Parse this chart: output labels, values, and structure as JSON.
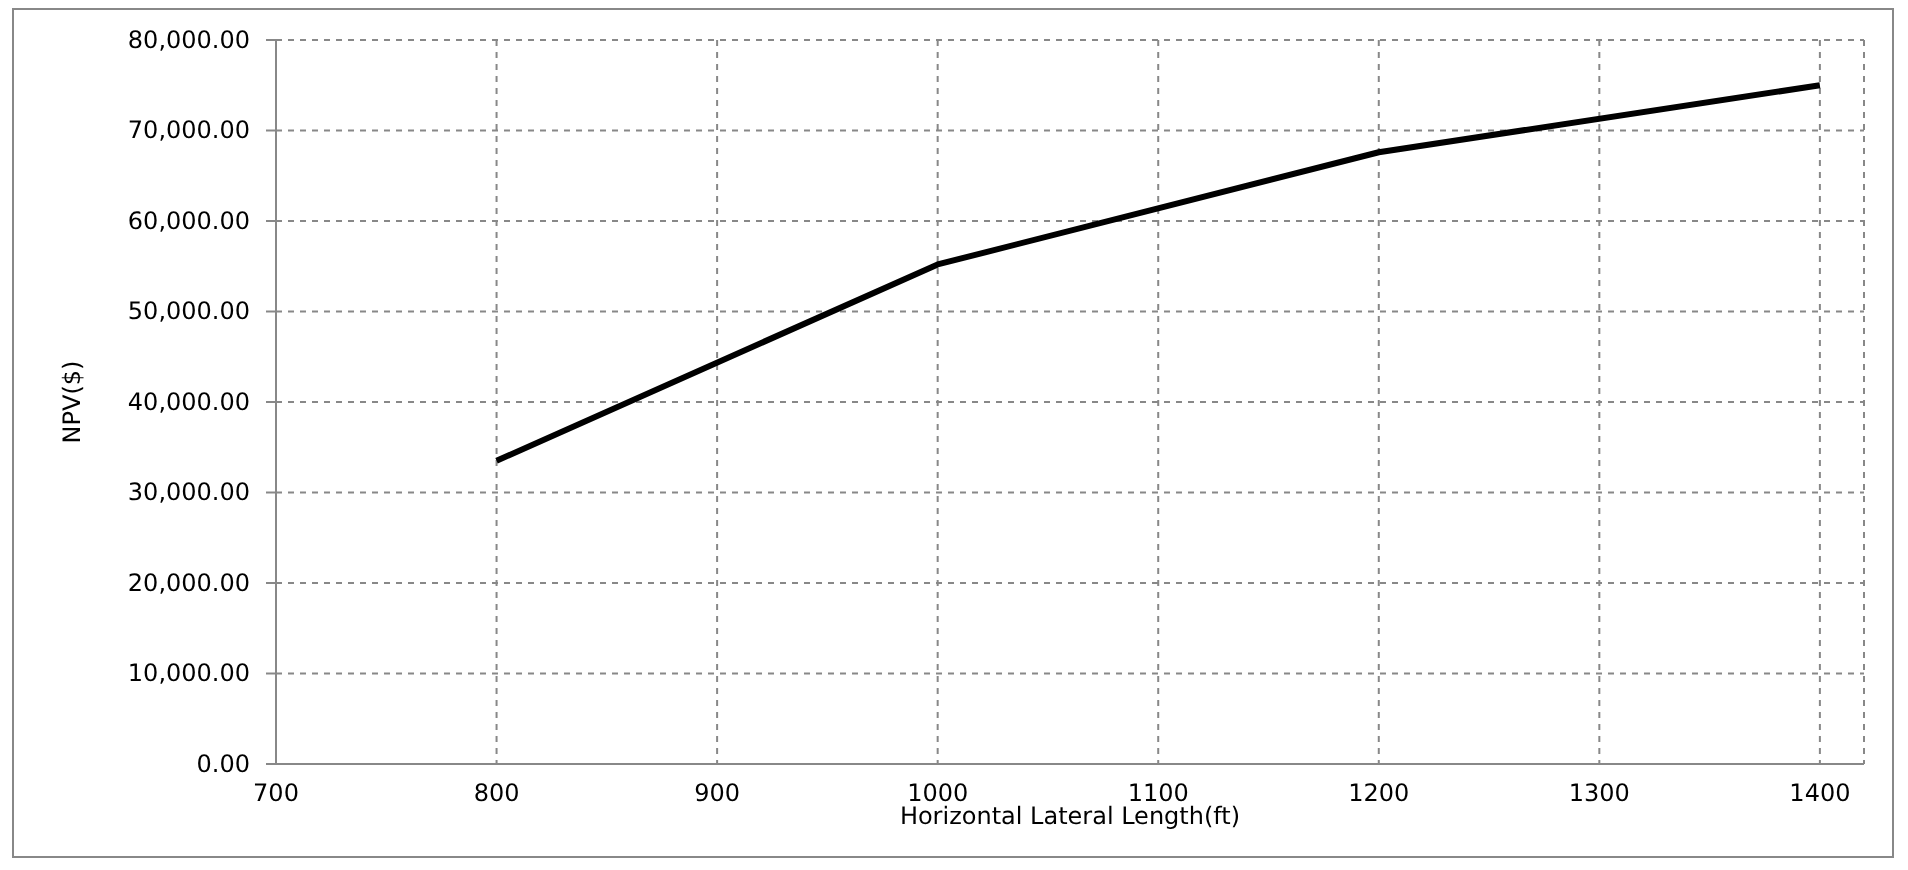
{
  "chart_data": {
    "type": "line",
    "xlabel": "Horizontal Lateral Length(ft)",
    "ylabel": "NPV($)",
    "x": [
      800,
      1000,
      1200,
      1400
    ],
    "series": [
      {
        "color": "#000000",
        "values": [
          33500,
          55200,
          67600,
          75000
        ]
      }
    ],
    "xlim": [
      700,
      1420
    ],
    "xticks": [
      700,
      800,
      900,
      1000,
      1100,
      1200,
      1300,
      1400
    ],
    "ylim": [
      0,
      80000
    ],
    "yticks": [
      {
        "value": 0,
        "label": "0.00"
      },
      {
        "value": 10000,
        "label": "10,000.00"
      },
      {
        "value": 20000,
        "label": "20,000.00"
      },
      {
        "value": 30000,
        "label": "30,000.00"
      },
      {
        "value": 40000,
        "label": "40,000.00"
      },
      {
        "value": 50000,
        "label": "50,000.00"
      },
      {
        "value": 60000,
        "label": "60,000.00"
      },
      {
        "value": 70000,
        "label": "70,000.00"
      },
      {
        "value": 80000,
        "label": "80,000.00"
      }
    ],
    "grid": true,
    "marker": "none",
    "line_style": "solid"
  }
}
